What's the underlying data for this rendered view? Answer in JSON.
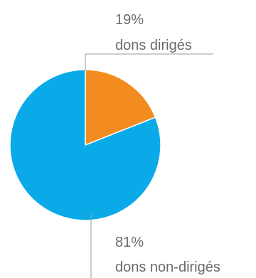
{
  "chart_data": {
    "type": "pie",
    "slices": [
      {
        "value": 19,
        "percent_label": "19%",
        "label": "dons dirigés",
        "color": "#f28c1e"
      },
      {
        "value": 81,
        "percent_label": "81%",
        "label": "dons non-dirigés",
        "color": "#0aaae8"
      }
    ]
  },
  "colors": {
    "leader_line": "#9a9a9a",
    "label_text": "#6b6b6b"
  }
}
